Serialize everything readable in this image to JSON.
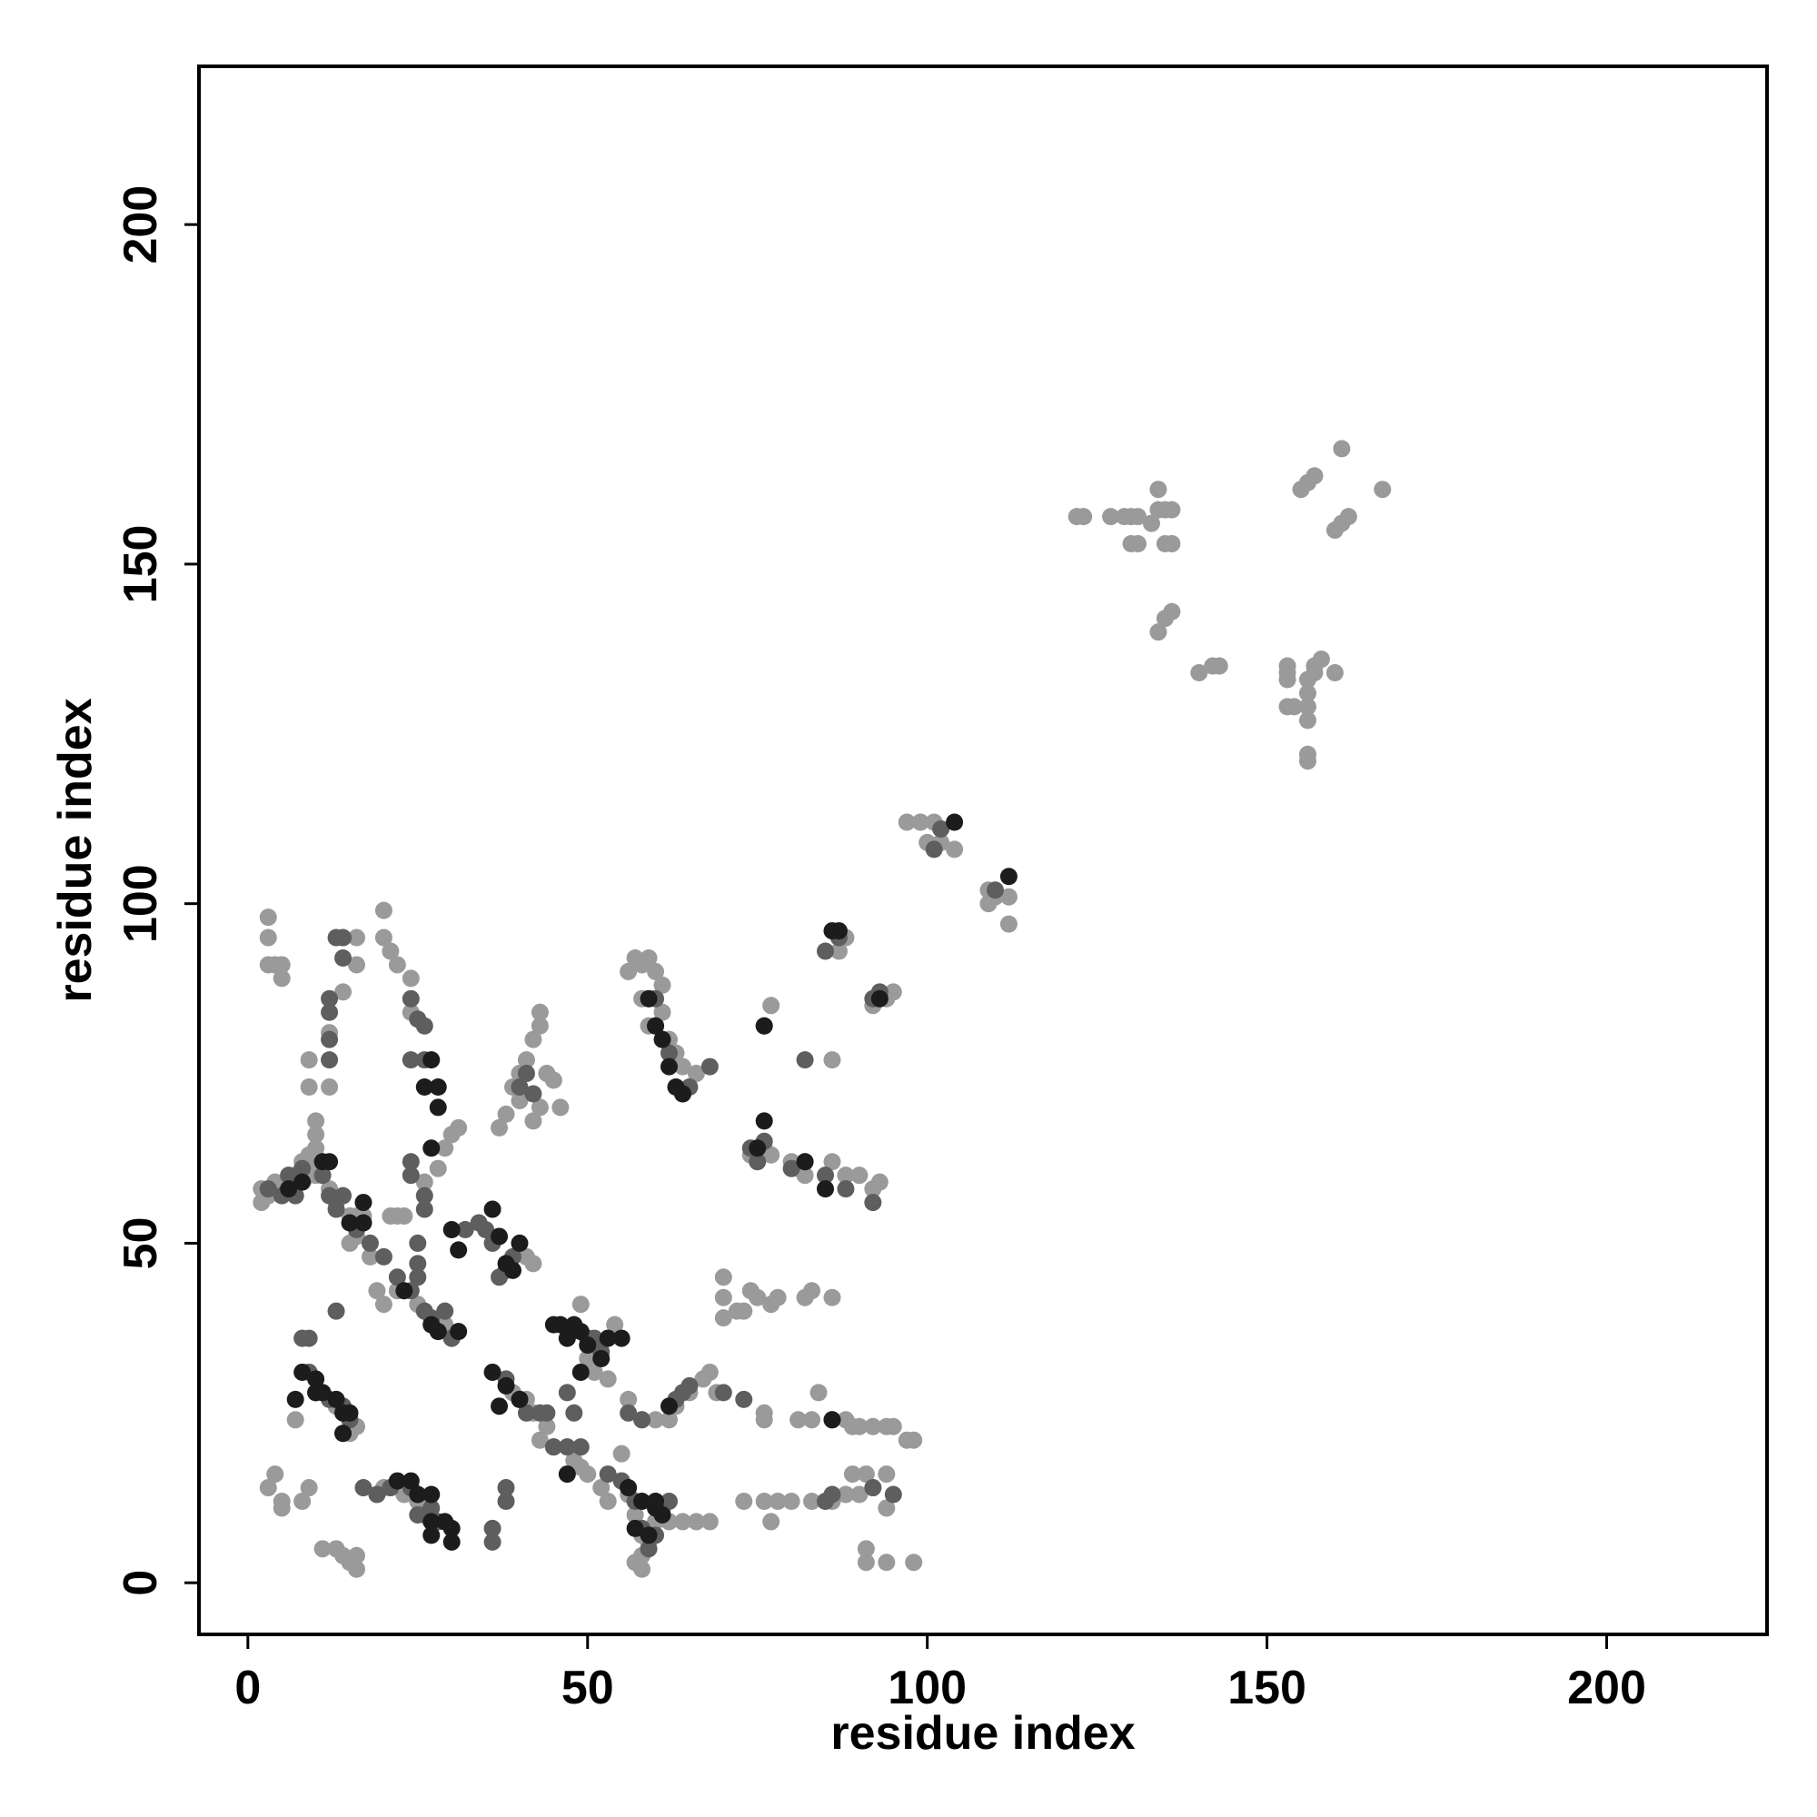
{
  "chart_data": {
    "type": "scatter",
    "x_label": "residue index",
    "y_label": "residue index",
    "xlim": [
      -7.2,
      223.6
    ],
    "ylim": [
      -7.6,
      223.3
    ],
    "xticks": [
      0,
      50,
      100,
      150,
      200
    ],
    "yticks": [
      0,
      50,
      100,
      150,
      200
    ],
    "series": [
      {
        "color": "#9a9a9a",
        "x": [
          122,
          123,
          127,
          129,
          130,
          131,
          134,
          135,
          136,
          134,
          133,
          130,
          131,
          135,
          136,
          135,
          136,
          134,
          140,
          142,
          143,
          153,
          153,
          153,
          153,
          154,
          157,
          158,
          157,
          156,
          156,
          156,
          156,
          156,
          156,
          160,
          155,
          156,
          157,
          161,
          167,
          160,
          161,
          162,
          101,
          102,
          99,
          100,
          97,
          109,
          110,
          109,
          112,
          112,
          2,
          3,
          4,
          3,
          4,
          3,
          3,
          5,
          5,
          9,
          9,
          10,
          10,
          10,
          9,
          9,
          12,
          12,
          14,
          16,
          16,
          20,
          20,
          21,
          22,
          24,
          24,
          21,
          22,
          23,
          17,
          15,
          18,
          19,
          20,
          22,
          25,
          27,
          29,
          30,
          26,
          28,
          29,
          30,
          31,
          37,
          38,
          39,
          40,
          41,
          42,
          43,
          43,
          44,
          45,
          46,
          43,
          42,
          40,
          41,
          42,
          39,
          41,
          42,
          43,
          44,
          45,
          48,
          49,
          50,
          52,
          53,
          55,
          56,
          57,
          58,
          58,
          58,
          57,
          59,
          60,
          62,
          64,
          66,
          68,
          55,
          56,
          58,
          60,
          62,
          63,
          65,
          67,
          68,
          69,
          70,
          70,
          70,
          72,
          73,
          74,
          75,
          77,
          78,
          82,
          83,
          86,
          73,
          76,
          77,
          78,
          80,
          83,
          86,
          88,
          89,
          90,
          92,
          91,
          94,
          94,
          95,
          94,
          92,
          90,
          97,
          98,
          98,
          94,
          91,
          91,
          76,
          76,
          81,
          83,
          84,
          88,
          89,
          74,
          76,
          77,
          80,
          81,
          82,
          86,
          88,
          90,
          92,
          93,
          77,
          86,
          54,
          49,
          50,
          50,
          51,
          53,
          9,
          8,
          5,
          3,
          4,
          13,
          14,
          15,
          16,
          16,
          11,
          20,
          23,
          25,
          7,
          13,
          14,
          15,
          16,
          5,
          56,
          57,
          58,
          59,
          60,
          61,
          61,
          62,
          63,
          64,
          66,
          58,
          59,
          92,
          94,
          95,
          87,
          88,
          104,
          2,
          7,
          8,
          9,
          10,
          12,
          13,
          15,
          16,
          17,
          16
        ],
        "values": [
          157,
          157,
          157,
          157,
          157,
          157,
          158,
          158,
          158,
          161,
          156,
          153,
          153,
          153,
          153,
          142,
          143,
          140,
          134,
          135,
          135,
          135,
          134,
          133,
          129,
          129,
          135,
          136,
          134,
          133,
          131,
          129,
          127,
          122,
          121,
          134,
          161,
          162,
          163,
          167,
          161,
          155,
          156,
          157,
          112,
          109,
          112,
          109,
          112,
          102,
          101,
          100,
          97,
          101,
          58,
          57,
          59,
          91,
          91,
          95,
          98,
          89,
          91,
          77,
          73,
          64,
          66,
          68,
          62,
          60,
          73,
          81,
          87,
          91,
          95,
          99,
          95,
          93,
          91,
          89,
          84,
          54,
          54,
          54,
          54,
          50,
          48,
          43,
          41,
          43,
          41,
          38,
          38,
          36,
          59,
          61,
          64,
          66,
          67,
          67,
          69,
          73,
          75,
          77,
          80,
          82,
          84,
          75,
          74,
          70,
          70,
          68,
          71,
          48,
          47,
          28,
          27,
          25,
          21,
          23,
          20,
          18,
          17,
          16,
          14,
          12,
          15,
          13,
          10,
          7,
          4,
          2,
          3,
          6,
          9,
          9,
          9,
          9,
          9,
          19,
          27,
          24,
          24,
          24,
          26,
          28,
          30,
          31,
          28,
          39,
          42,
          45,
          40,
          40,
          43,
          42,
          41,
          42,
          42,
          43,
          42,
          12,
          12,
          9,
          12,
          12,
          12,
          12,
          13,
          16,
          13,
          14,
          16,
          16,
          11,
          23,
          23,
          23,
          23,
          21,
          21,
          3,
          3,
          3,
          5,
          24,
          25,
          24,
          24,
          28,
          24,
          23,
          63,
          64,
          63,
          62,
          61,
          60,
          62,
          60,
          60,
          58,
          59,
          85,
          77,
          38,
          41,
          36,
          33,
          31,
          30,
          14,
          12,
          11,
          14,
          16,
          5,
          4,
          3,
          2,
          4,
          5,
          14,
          13,
          12,
          24,
          26,
          22,
          22,
          23,
          12,
          90,
          92,
          91,
          92,
          90,
          88,
          84,
          80,
          78,
          76,
          75,
          86,
          82,
          85,
          86,
          87,
          93,
          95,
          108,
          56,
          60,
          62,
          63,
          60,
          58,
          56,
          54,
          54,
          53,
          51
        ]
      },
      {
        "color": "#5e5e5e",
        "x": [
          5,
          7,
          6,
          8,
          11,
          12,
          14,
          13,
          18,
          20,
          22,
          24,
          25,
          26,
          27,
          25,
          25,
          26,
          26,
          24,
          24,
          24,
          26,
          26,
          25,
          24,
          12,
          12,
          12,
          13,
          14,
          14,
          12,
          13,
          8,
          9,
          9,
          10,
          12,
          14,
          15,
          17,
          19,
          21,
          24,
          25,
          26,
          27,
          28,
          16,
          32,
          34,
          35,
          36,
          38,
          39,
          37,
          38,
          40,
          41,
          43,
          44,
          45,
          47,
          49,
          48,
          47,
          50,
          51,
          52,
          53,
          55,
          57,
          58,
          59,
          60,
          61,
          62,
          63,
          64,
          65,
          70,
          73,
          74,
          75,
          76,
          80,
          82,
          85,
          88,
          92,
          85,
          87,
          93,
          92,
          60,
          60,
          62,
          64,
          65,
          68,
          76,
          82,
          86,
          86,
          85,
          95,
          92,
          102,
          101,
          110,
          58,
          56,
          3,
          38,
          38,
          36,
          36,
          40,
          41,
          42,
          30,
          29
        ],
        "values": [
          57,
          57,
          60,
          61,
          60,
          57,
          57,
          55,
          50,
          48,
          45,
          43,
          45,
          40,
          39,
          47,
          50,
          55,
          57,
          60,
          62,
          77,
          77,
          82,
          83,
          86,
          86,
          84,
          80,
          95,
          95,
          92,
          77,
          40,
          36,
          36,
          31,
          28,
          27,
          26,
          24,
          14,
          13,
          14,
          14,
          10,
          10,
          11,
          9,
          52,
          52,
          53,
          52,
          50,
          46,
          48,
          45,
          30,
          27,
          25,
          25,
          25,
          20,
          20,
          20,
          25,
          28,
          36,
          36,
          34,
          16,
          15,
          12,
          8,
          5,
          7,
          11,
          12,
          27,
          28,
          29,
          28,
          27,
          64,
          62,
          65,
          61,
          62,
          60,
          58,
          56,
          93,
          95,
          87,
          86,
          86,
          82,
          78,
          72,
          73,
          76,
          82,
          77,
          24,
          13,
          12,
          13,
          14,
          111,
          108,
          102,
          24,
          25,
          58,
          14,
          12,
          8,
          6,
          73,
          75,
          72,
          36,
          40
        ]
      },
      {
        "color": "#1c1c1c",
        "x": [
          6,
          8,
          11,
          12,
          15,
          17,
          17,
          23,
          27,
          28,
          31,
          27,
          26,
          28,
          28,
          27,
          30,
          31,
          36,
          37,
          38,
          39,
          40,
          36,
          38,
          40,
          37,
          45,
          46,
          47,
          48,
          49,
          50,
          52,
          53,
          55,
          49,
          47,
          56,
          58,
          60,
          61,
          62,
          57,
          59,
          61,
          60,
          62,
          63,
          64,
          76,
          75,
          76,
          82,
          85,
          86,
          86,
          87,
          93,
          104,
          112,
          7,
          8,
          10,
          10,
          11,
          13,
          14,
          14,
          15,
          22,
          24,
          25,
          27,
          27,
          27,
          29,
          30,
          30,
          60,
          59
        ],
        "values": [
          58,
          59,
          62,
          62,
          53,
          56,
          53,
          43,
          38,
          37,
          37,
          77,
          73,
          73,
          70,
          64,
          52,
          49,
          55,
          51,
          47,
          46,
          50,
          31,
          29,
          27,
          26,
          38,
          38,
          36,
          38,
          37,
          35,
          33,
          36,
          36,
          31,
          16,
          14,
          12,
          11,
          10,
          26,
          8,
          7,
          80,
          82,
          76,
          73,
          72,
          68,
          64,
          82,
          62,
          58,
          24,
          96,
          96,
          86,
          112,
          104,
          27,
          31,
          30,
          28,
          28,
          27,
          25,
          22,
          25,
          15,
          15,
          13,
          13,
          9,
          7,
          9,
          8,
          6,
          12,
          86
        ]
      }
    ]
  }
}
